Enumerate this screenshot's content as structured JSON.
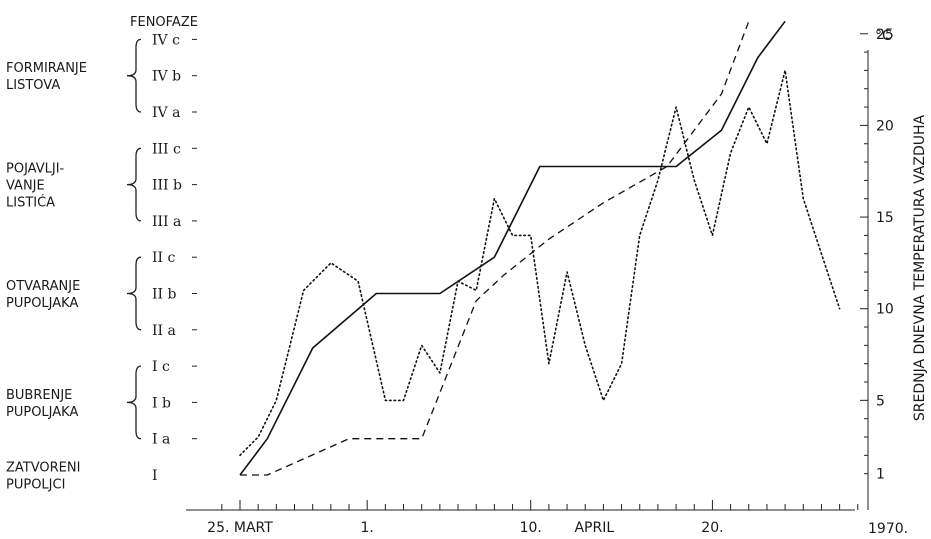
{
  "chart_data": {
    "type": "line",
    "title": "FENOFAZE",
    "year_label": "1970.",
    "right_unit": "°C",
    "right_axis_label": "SREDNJA DNEVNA TEMPERATURA VAZDUHA",
    "x_tick_labels": [
      {
        "day": 0,
        "label": "25. MART"
      },
      {
        "day": 7,
        "label": "1."
      },
      {
        "day": 16,
        "label": "10."
      },
      {
        "day": 19.5,
        "label": "APRIL"
      },
      {
        "day": 26,
        "label": "20."
      }
    ],
    "xlim": [
      -1,
      34
    ],
    "phase_ylim": [
      0,
      12
    ],
    "phase_levels": [
      "I",
      "I a",
      "I b",
      "I c",
      "II a",
      "II b",
      "II c",
      "III a",
      "III b",
      "III c",
      "IV a",
      "IV b",
      "IV c"
    ],
    "phase_groups": [
      {
        "lines": [
          "ZATVORENI",
          "PUPOLJCI"
        ],
        "from": 0,
        "to": 0,
        "brace": false
      },
      {
        "lines": [
          "BUBRENJE",
          "PUPOLJAKA"
        ],
        "from": 1,
        "to": 3,
        "brace": true
      },
      {
        "lines": [
          "OTVARANJE",
          "PUPOLJAKA"
        ],
        "from": 4,
        "to": 6,
        "brace": true
      },
      {
        "lines": [
          "POJAVLJI-",
          "VANJE",
          "LISTIĆA"
        ],
        "from": 7,
        "to": 9,
        "brace": true
      },
      {
        "lines": [
          "FORMIRANJE",
          "LISTOVA"
        ],
        "from": 10,
        "to": 12,
        "brace": true
      }
    ],
    "temp_ylim": [
      1,
      25
    ],
    "temp_ticks": [
      1,
      5,
      10,
      15,
      20,
      25
    ],
    "series": [
      {
        "style": "solid",
        "axis": "phase",
        "x": [
          0,
          1.5,
          4,
          7.5,
          11,
          14,
          16.5,
          24,
          26.5,
          28.5,
          30
        ],
        "y": [
          0,
          1,
          3.5,
          5,
          5,
          6,
          8.5,
          8.5,
          9.5,
          11.5,
          12.5
        ]
      },
      {
        "style": "dashed",
        "axis": "phase",
        "x": [
          0,
          1.5,
          6,
          10,
          13,
          14.5,
          17,
          20,
          23.5,
          26.5,
          28
        ],
        "y": [
          0,
          0,
          1,
          1,
          4.8,
          5.5,
          6.5,
          7.5,
          8.5,
          10.5,
          12.5
        ]
      },
      {
        "style": "dotted",
        "axis": "temp",
        "x": [
          0,
          1,
          2,
          3.5,
          5,
          6.5,
          8,
          9,
          10,
          11,
          12,
          13,
          14,
          15,
          16,
          17,
          18,
          19,
          20,
          21,
          22,
          23,
          24,
          25,
          26,
          27,
          28,
          29,
          30,
          31,
          32,
          33
        ],
        "y": [
          2,
          3,
          5,
          11,
          12.5,
          11.5,
          5,
          5,
          8,
          6.5,
          11.5,
          11,
          16,
          14,
          14,
          7,
          12,
          8,
          5,
          7,
          14,
          17,
          21,
          17,
          14,
          18.5,
          21,
          19,
          23,
          16,
          13,
          10
        ]
      }
    ]
  }
}
